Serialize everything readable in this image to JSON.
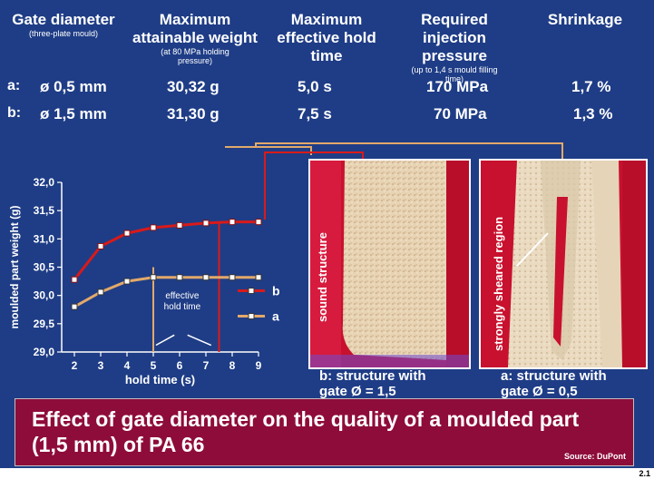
{
  "table": {
    "headers": [
      {
        "main": "Gate diameter",
        "sub": "(three-plate mould)"
      },
      {
        "main": "Maximum attainable weight",
        "sub": "(at 80 MPa holding pressure)"
      },
      {
        "main": "Maximum effective hold time",
        "sub": ""
      },
      {
        "main": "Required injection pressure",
        "sub": "(up to 1,4 s mould filling time)"
      },
      {
        "main": "Shrinkage",
        "sub": ""
      }
    ],
    "rows": [
      {
        "label": "a:",
        "diameter": "ø 0,5 mm",
        "weight": "30,32 g",
        "hold": "5,0 s",
        "pressure": "170 MPa",
        "shrinkage": "1,7 %"
      },
      {
        "label": "b:",
        "diameter": "ø 1,5 mm",
        "weight": "31,30 g",
        "hold": "7,5 s",
        "pressure": "70 MPa",
        "shrinkage": "1,3 %"
      }
    ]
  },
  "chart_data": {
    "type": "line",
    "x": [
      2,
      3,
      4,
      5,
      6,
      7,
      8,
      9
    ],
    "series": [
      {
        "name": "b",
        "values": [
          30.28,
          30.87,
          31.1,
          31.2,
          31.24,
          31.28,
          31.3,
          31.3
        ],
        "color": "#d81a1a",
        "hold_time": 7.5
      },
      {
        "name": "a",
        "values": [
          29.8,
          30.06,
          30.25,
          30.32,
          30.32,
          30.32,
          30.32,
          30.32
        ],
        "color": "#e2a96a",
        "hold_time": 5.0
      }
    ],
    "xlabel": "hold time (s)",
    "ylabel": "moulded part weight (g)",
    "xlim": [
      2,
      9
    ],
    "ylim": [
      29.0,
      32.0
    ],
    "yticks": [
      "29,0",
      "29,5",
      "30,0",
      "30,5",
      "31,0",
      "31,5",
      "32,0"
    ],
    "xticks": [
      "2",
      "3",
      "4",
      "5",
      "6",
      "7",
      "8",
      "9"
    ],
    "annotation": "effective hold time",
    "grid": false,
    "legend": "right"
  },
  "photos": [
    {
      "label": "sound structure",
      "caption": "b: structure with gate Ø = 1,5"
    },
    {
      "label": "strongly sheared region",
      "caption": "a: structure with gate  Ø = 0,5"
    }
  ],
  "banner": {
    "title": "Effect of gate diameter on the quality of a moulded part (1,5 mm) of PA 66",
    "source": "Source: DuPont"
  },
  "page_number": "2.1",
  "colors": {
    "background": "#1f3d86",
    "banner": "#8e0c3a",
    "series_b": "#d81a1a",
    "series_a": "#e2a96a"
  }
}
